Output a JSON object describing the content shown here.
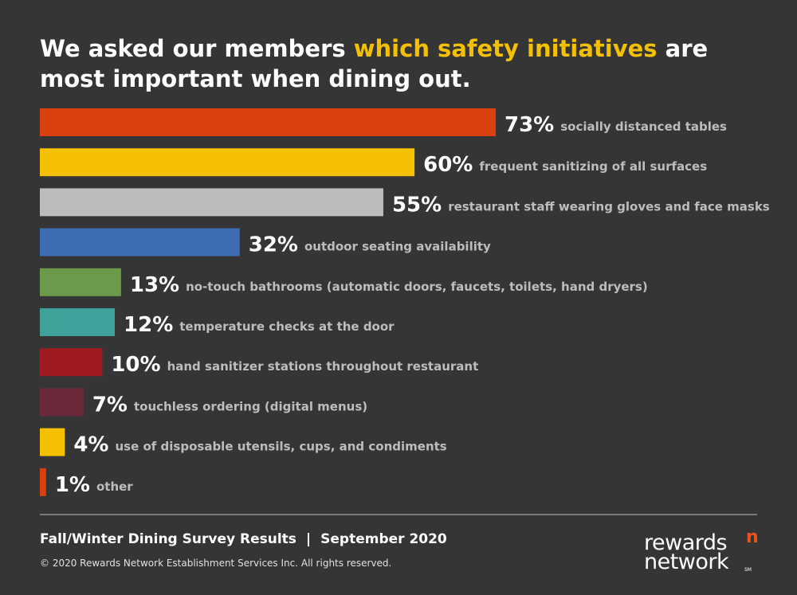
{
  "title": {
    "part1": "We asked our members ",
    "highlight": "which safety initiatives",
    "part2": " are most important when dining out."
  },
  "chart_data": {
    "type": "bar",
    "orientation": "horizontal",
    "xlim": [
      0,
      100
    ],
    "grid": false,
    "categories": [
      "socially distanced tables",
      "frequent sanitizing of all surfaces",
      "restaurant staff wearing gloves and face masks",
      "outdoor seating availability",
      "no-touch bathrooms (automatic doors, faucets, toilets, hand dryers)",
      "temperature checks at the door",
      "hand sanitizer stations throughout restaurant",
      "touchless ordering (digital menus)",
      "use of disposable utensils, cups, and condiments",
      "other"
    ],
    "values": [
      73,
      60,
      55,
      32,
      13,
      12,
      10,
      7,
      4,
      1
    ],
    "value_labels": [
      "73%",
      "60%",
      "55%",
      "32%",
      "13%",
      "12%",
      "10%",
      "7%",
      "4%",
      "1%"
    ],
    "colors": [
      "#d9400e",
      "#f5c000",
      "#bcbcbc",
      "#3f6db3",
      "#6a9a4a",
      "#3fa29a",
      "#9e1c20",
      "#6a2a3a",
      "#f5c000",
      "#d9400e"
    ]
  },
  "footer": {
    "survey": "Fall/Winter Dining Survey Results",
    "separator": "|",
    "date": "September 2020",
    "copyright": "© 2020 Rewards Network Establishment Services Inc. All rights reserved."
  },
  "logo": {
    "line1": "rewards",
    "line2": "network",
    "sm": "SM",
    "mark": "n",
    "mark_color": "#e8541c"
  }
}
